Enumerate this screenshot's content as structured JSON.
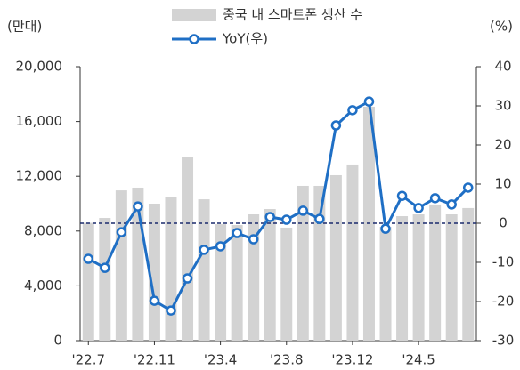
{
  "chart_data": {
    "type": "combo",
    "unit_left": "(만대)",
    "unit_right": "(%)",
    "categories": [
      "'22.7",
      null,
      null,
      null,
      "'22.11",
      null,
      null,
      null,
      "'23.4",
      null,
      null,
      null,
      "'23.8",
      null,
      null,
      null,
      "'23.12",
      null,
      null,
      null,
      "'24.5",
      null,
      null,
      null
    ],
    "series": [
      {
        "name": "중국 내 스마트폰 생산 수",
        "type": "bar",
        "color": "#d3d3d3",
        "values": [
          8600,
          8960,
          10970,
          11170,
          10000,
          10520,
          13380,
          10320,
          8500,
          8440,
          9220,
          9610,
          8250,
          11300,
          11300,
          12080,
          12860,
          17080,
          8310,
          9090,
          9220,
          9940,
          9220,
          9680
        ]
      },
      {
        "name": "YoY(우)",
        "type": "line",
        "axis": "y2",
        "color": "#1f6fc5",
        "values": [
          -9.1,
          -11.4,
          -2.3,
          4.3,
          -19.8,
          -22.3,
          -14.1,
          -6.8,
          -5.9,
          -2.5,
          -4.1,
          1.6,
          0.9,
          3.2,
          1.1,
          25.0,
          28.9,
          31.1,
          -1.4,
          7.0,
          3.9,
          6.4,
          4.8,
          9.1
        ]
      }
    ],
    "ylim": [
      0,
      20000
    ],
    "yticks": [
      0,
      {
        "value": 4000,
        "label": "4,000"
      },
      {
        "value": 8000,
        "label": "8,000"
      },
      {
        "value": 12000,
        "label": "12,000"
      },
      {
        "value": 16000,
        "label": "16,000"
      },
      {
        "value": 20000,
        "label": "20,000"
      }
    ],
    "y2lim": [
      -30,
      40
    ],
    "y2ticks": [
      -30,
      -20,
      -10,
      0,
      10,
      20,
      30,
      40
    ],
    "zero_line": true,
    "zero_line_color": "#1a2a6c"
  }
}
